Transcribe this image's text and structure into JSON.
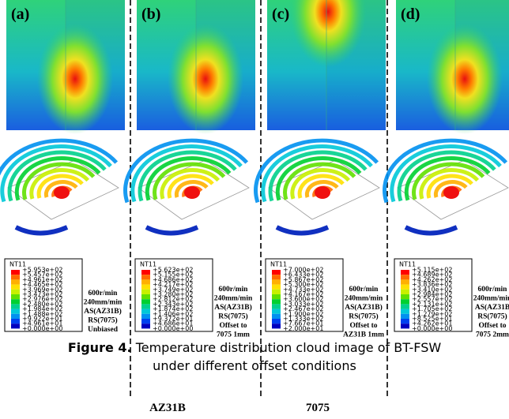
{
  "panels": [
    {
      "label": "(a)",
      "legend": {
        "title": "NT11",
        "values": [
          "+5.953e+02",
          "+5.457e+02",
          "+4.961e+02",
          "+4.465e+02",
          "+3.969e+02",
          "+3.473e+02",
          "+2.976e+02",
          "+2.480e+02",
          "+1.984e+02",
          "+1.488e+02",
          "+9.922e+01",
          "+4.961e+01",
          "+0.000e+00"
        ]
      },
      "conditions": [
        "600r/min",
        "240mm/min",
        "AS(AZ31B)",
        "RS(7075)",
        "Unbiased"
      ]
    },
    {
      "label": "(b)",
      "legend": {
        "title": "NT11",
        "values": [
          "+5.623e+02",
          "+5.155e+02",
          "+4.686e+02",
          "+4.217e+02",
          "+3.749e+02",
          "+3.280e+02",
          "+2.812e+02",
          "+2.343e+02",
          "+1.874e+02",
          "+1.406e+02",
          "+9.372e+01",
          "+4.686e+01",
          "+0.000e+00"
        ]
      },
      "conditions": [
        "600r/min",
        "240mm/min",
        "AS(AZ31B)",
        "RS(7075)",
        "Offset to",
        "7075 1mm"
      ]
    },
    {
      "label": "(c)",
      "legend": {
        "title": "NT11",
        "values": [
          "+7.000e+02",
          "+6.433e+02",
          "+5.867e+02",
          "+5.300e+02",
          "+4.733e+02",
          "+4.167e+02",
          "+3.600e+02",
          "+3.033e+02",
          "+2.467e+02",
          "+1.900e+02",
          "+1.333e+02",
          "+7.667e+01",
          "+2.000e+01"
        ]
      },
      "conditions": [
        "600r/min",
        "240mm/min",
        "AS(AZ31B)",
        "RS(7075)",
        "Offset to",
        "AZ31B 1mm"
      ]
    },
    {
      "label": "(d)",
      "legend": {
        "title": "NT11",
        "values": [
          "+5.115e+02",
          "+4.689e+02",
          "+4.262e+02",
          "+3.836e+02",
          "+3.410e+02",
          "+2.984e+02",
          "+2.557e+02",
          "+2.131e+02",
          "+1.705e+02",
          "+1.279e+02",
          "+8.525e+01",
          "+4.262e+01",
          "+0.000e+00"
        ]
      },
      "conditions": [
        "600r/min",
        "240mm/min",
        "AS(AZ31B",
        "RS(7075)",
        "Offset to",
        "7075 2mm"
      ]
    }
  ],
  "caption": {
    "label": "Figure 4.",
    "lines": [
      "Temperature distribution cloud image of BT-FSW",
      "under different offset conditions"
    ]
  },
  "materials": [
    "AZ31B",
    "7075"
  ]
}
